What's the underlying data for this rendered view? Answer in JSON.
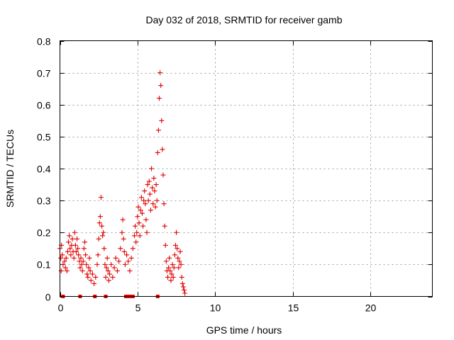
{
  "chart_data": {
    "type": "scatter",
    "title": "Day 032 of 2018, SRMTID for receiver gamb",
    "xlabel": "GPS time / hours",
    "ylabel": "SRMTID / TECUs",
    "xlim": [
      0,
      24
    ],
    "ylim": [
      0,
      0.8
    ],
    "x_ticks": [
      0,
      5,
      10,
      15,
      20
    ],
    "y_ticks": [
      0,
      0.1,
      0.2,
      0.3,
      0.4,
      0.5,
      0.6,
      0.7,
      0.8
    ],
    "x_tick_labels": [
      "0",
      "5",
      "10",
      "15",
      "20"
    ],
    "y_tick_labels": [
      "0",
      "0.1",
      "0.2",
      "0.3",
      "0.4",
      "0.5",
      "0.6",
      "0.7",
      "0.8"
    ],
    "grid": true,
    "marker_color": "#e00000",
    "series": [
      {
        "name": "SRMTID",
        "marker": "plus",
        "points": [
          [
            0.0,
            0.15
          ],
          [
            0.05,
            0.12
          ],
          [
            0.08,
            0.08
          ],
          [
            0.1,
            0.16
          ],
          [
            0.15,
            0.13
          ],
          [
            0.2,
            0.1
          ],
          [
            0.3,
            0.11
          ],
          [
            0.35,
            0.09
          ],
          [
            0.4,
            0.12
          ],
          [
            0.45,
            0.08
          ],
          [
            0.5,
            0.14
          ],
          [
            0.55,
            0.17
          ],
          [
            0.6,
            0.19
          ],
          [
            0.65,
            0.15
          ],
          [
            0.7,
            0.13
          ],
          [
            0.75,
            0.16
          ],
          [
            0.8,
            0.18
          ],
          [
            0.85,
            0.14
          ],
          [
            0.9,
            0.12
          ],
          [
            0.95,
            0.2
          ],
          [
            1.0,
            0.16
          ],
          [
            1.05,
            0.14
          ],
          [
            1.1,
            0.18
          ],
          [
            1.15,
            0.15
          ],
          [
            1.2,
            0.13
          ],
          [
            1.25,
            0.11
          ],
          [
            1.3,
            0.09
          ],
          [
            1.35,
            0.12
          ],
          [
            1.4,
            0.1
          ],
          [
            1.45,
            0.08
          ],
          [
            1.5,
            0.11
          ],
          [
            1.55,
            0.15
          ],
          [
            1.6,
            0.17
          ],
          [
            1.65,
            0.13
          ],
          [
            1.7,
            0.1
          ],
          [
            1.75,
            0.07
          ],
          [
            1.8,
            0.06
          ],
          [
            1.85,
            0.09
          ],
          [
            1.9,
            0.12
          ],
          [
            1.95,
            0.08
          ],
          [
            2.0,
            0.05
          ],
          [
            2.1,
            0.07
          ],
          [
            2.2,
            0.04
          ],
          [
            2.3,
            0.06
          ],
          [
            2.4,
            0.1
          ],
          [
            2.45,
            0.13
          ],
          [
            2.5,
            0.18
          ],
          [
            2.55,
            0.23
          ],
          [
            2.6,
            0.25
          ],
          [
            2.65,
            0.31
          ],
          [
            2.7,
            0.22
          ],
          [
            2.75,
            0.19
          ],
          [
            2.8,
            0.2
          ],
          [
            2.85,
            0.15
          ],
          [
            2.9,
            0.1
          ],
          [
            2.95,
            0.06
          ],
          [
            3.0,
            0.09
          ],
          [
            3.05,
            0.12
          ],
          [
            3.1,
            0.08
          ],
          [
            3.15,
            0.05
          ],
          [
            3.2,
            0.07
          ],
          [
            3.3,
            0.1
          ],
          [
            3.4,
            0.06
          ],
          [
            3.5,
            0.09
          ],
          [
            3.6,
            0.12
          ],
          [
            3.7,
            0.08
          ],
          [
            3.8,
            0.11
          ],
          [
            3.9,
            0.15
          ],
          [
            4.0,
            0.2
          ],
          [
            4.05,
            0.24
          ],
          [
            4.1,
            0.18
          ],
          [
            4.15,
            0.14
          ],
          [
            4.2,
            0.1
          ],
          [
            4.3,
            0.13
          ],
          [
            4.4,
            0.11
          ],
          [
            4.5,
            0.08
          ],
          [
            4.6,
            0.12
          ],
          [
            4.7,
            0.15
          ],
          [
            4.8,
            0.19
          ],
          [
            4.85,
            0.22
          ],
          [
            4.9,
            0.17
          ],
          [
            4.95,
            0.2
          ],
          [
            5.0,
            0.25
          ],
          [
            5.05,
            0.28
          ],
          [
            5.1,
            0.23
          ],
          [
            5.15,
            0.19
          ],
          [
            5.2,
            0.27
          ],
          [
            5.25,
            0.31
          ],
          [
            5.3,
            0.26
          ],
          [
            5.35,
            0.22
          ],
          [
            5.4,
            0.3
          ],
          [
            5.45,
            0.33
          ],
          [
            5.5,
            0.29
          ],
          [
            5.55,
            0.24
          ],
          [
            5.6,
            0.2
          ],
          [
            5.65,
            0.35
          ],
          [
            5.7,
            0.3
          ],
          [
            5.75,
            0.36
          ],
          [
            5.8,
            0.32
          ],
          [
            5.85,
            0.27
          ],
          [
            5.9,
            0.4
          ],
          [
            5.95,
            0.34
          ],
          [
            6.0,
            0.29
          ],
          [
            6.05,
            0.37
          ],
          [
            6.1,
            0.33
          ],
          [
            6.15,
            0.28
          ],
          [
            6.2,
            0.35
          ],
          [
            6.25,
            0.3
          ],
          [
            6.3,
            0.45
          ],
          [
            6.35,
            0.52
          ],
          [
            6.4,
            0.62
          ],
          [
            6.45,
            0.7
          ],
          [
            6.5,
            0.66
          ],
          [
            6.55,
            0.55
          ],
          [
            6.6,
            0.46
          ],
          [
            6.65,
            0.38
          ],
          [
            6.7,
            0.29
          ],
          [
            6.75,
            0.22
          ],
          [
            6.8,
            0.16
          ],
          [
            6.85,
            0.11
          ],
          [
            6.9,
            0.08
          ],
          [
            6.95,
            0.06
          ],
          [
            7.0,
            0.09
          ],
          [
            7.05,
            0.12
          ],
          [
            7.1,
            0.08
          ],
          [
            7.15,
            0.05
          ],
          [
            7.2,
            0.07
          ],
          [
            7.25,
            0.1
          ],
          [
            7.3,
            0.06
          ],
          [
            7.35,
            0.09
          ],
          [
            7.4,
            0.13
          ],
          [
            7.45,
            0.16
          ],
          [
            7.5,
            0.2
          ],
          [
            7.55,
            0.15
          ],
          [
            7.6,
            0.12
          ],
          [
            7.65,
            0.09
          ],
          [
            7.7,
            0.11
          ],
          [
            7.75,
            0.14
          ],
          [
            7.8,
            0.1
          ],
          [
            7.85,
            0.06
          ],
          [
            7.9,
            0.04
          ],
          [
            7.95,
            0.03
          ],
          [
            8.0,
            0.02
          ],
          [
            8.05,
            0.01
          ]
        ]
      },
      {
        "name": "zero-level markers",
        "marker": "square",
        "points": [
          [
            0.2,
            0.0
          ],
          [
            1.3,
            0.0
          ],
          [
            2.25,
            0.0
          ],
          [
            2.95,
            0.0
          ],
          [
            4.25,
            0.0
          ],
          [
            4.4,
            0.0
          ],
          [
            4.6,
            0.0
          ],
          [
            4.7,
            0.0
          ],
          [
            6.3,
            0.0
          ]
        ]
      }
    ]
  }
}
